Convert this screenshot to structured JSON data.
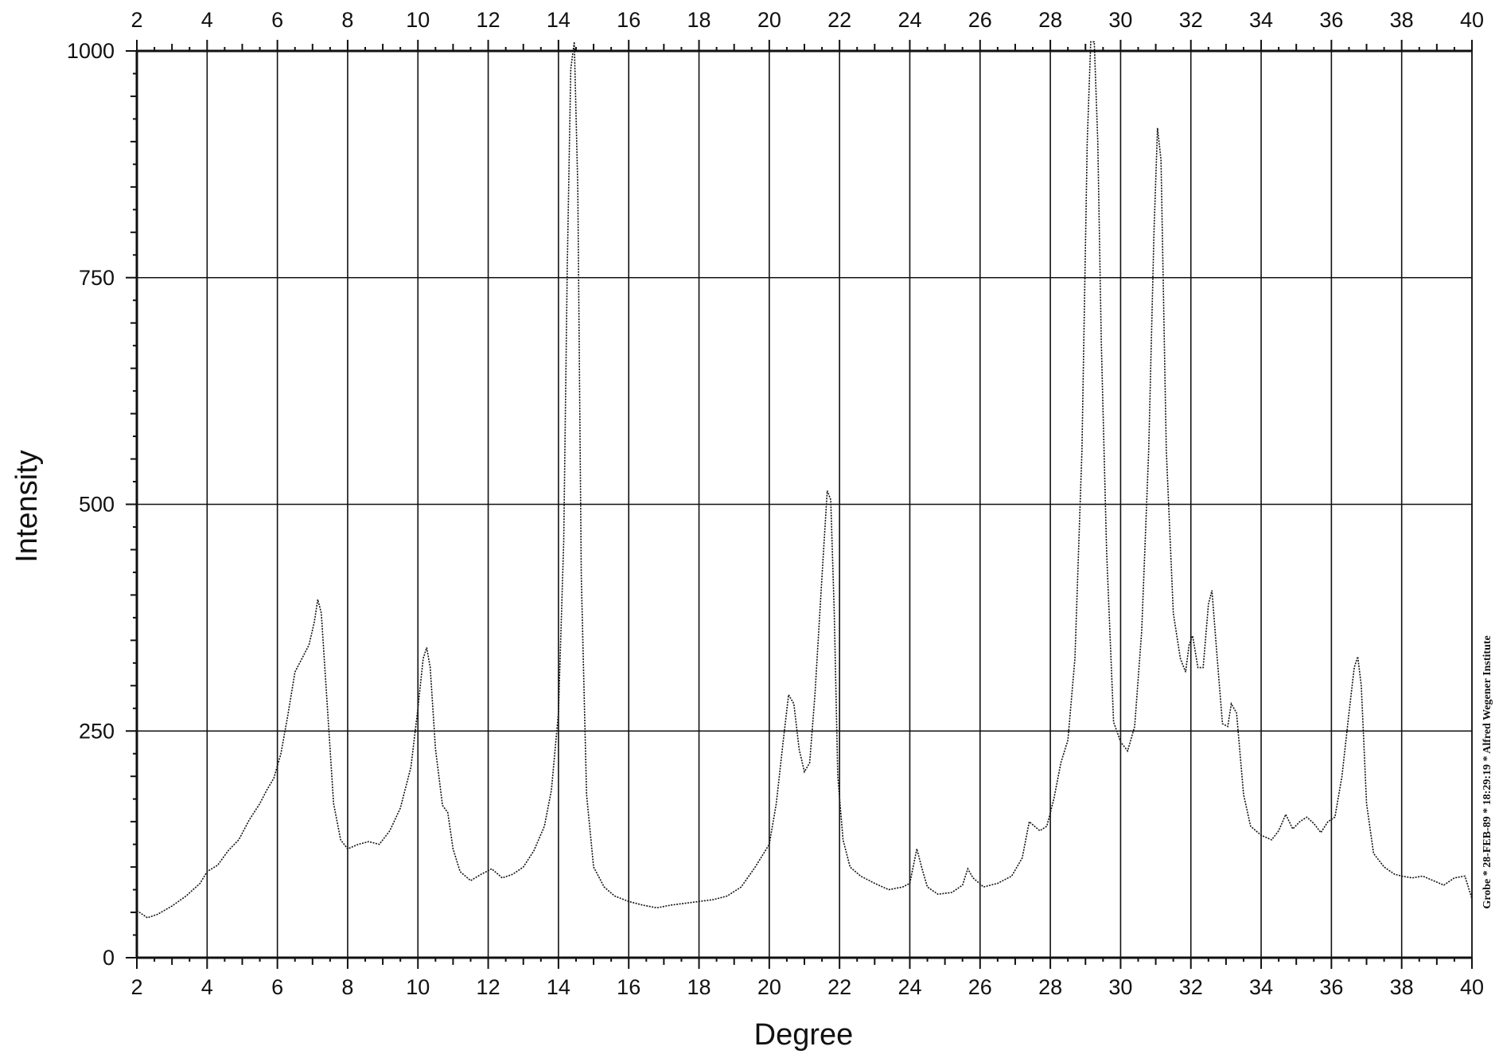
{
  "chart_data": {
    "type": "line",
    "xlabel": "Degree",
    "ylabel": "Intensity",
    "xlim": [
      2,
      40
    ],
    "ylim": [
      0,
      1000
    ],
    "x_ticks": [
      2,
      4,
      6,
      8,
      10,
      12,
      14,
      16,
      18,
      20,
      22,
      24,
      26,
      28,
      30,
      32,
      34,
      36,
      38,
      40
    ],
    "x_tick_labels": [
      "2",
      "4",
      "6",
      "8",
      "10",
      "12",
      "14",
      "16",
      "18",
      "20",
      "22",
      "24",
      "26",
      "28",
      "30",
      "32",
      "34",
      "36",
      "38",
      "40"
    ],
    "y_ticks": [
      0,
      250,
      500,
      750,
      1000
    ],
    "y_tick_labels": [
      "0",
      "250",
      "500",
      "750",
      "1000"
    ],
    "grid": true,
    "top_axis_labels": true,
    "line_style": "dotted",
    "line_color": "#111111",
    "annotation": "Grobe * 28-FEB-89 * 18:29:19 * Alfred Wegener Institute",
    "series": [
      {
        "x": [
          2.0,
          2.3,
          2.6,
          3.0,
          3.4,
          3.8,
          4.0,
          4.3,
          4.6,
          4.9,
          5.2,
          5.5,
          5.7,
          5.9,
          6.1,
          6.3,
          6.5,
          6.7,
          6.9,
          7.05,
          7.15,
          7.25,
          7.4,
          7.6,
          7.8,
          8.0,
          8.3,
          8.6,
          8.9,
          9.2,
          9.5,
          9.8,
          10.0,
          10.15,
          10.25,
          10.35,
          10.5,
          10.7,
          10.85,
          11.0,
          11.2,
          11.5,
          11.8,
          12.1,
          12.4,
          12.7,
          13.0,
          13.3,
          13.6,
          13.8,
          14.0,
          14.15,
          14.25,
          14.35,
          14.45,
          14.55,
          14.65,
          14.8,
          15.0,
          15.3,
          15.6,
          16.0,
          16.4,
          16.8,
          17.2,
          17.6,
          18.0,
          18.4,
          18.8,
          19.2,
          19.6,
          20.0,
          20.2,
          20.4,
          20.55,
          20.7,
          20.85,
          21.0,
          21.15,
          21.3,
          21.5,
          21.65,
          21.75,
          21.85,
          21.95,
          22.1,
          22.3,
          22.6,
          23.0,
          23.4,
          23.8,
          24.0,
          24.2,
          24.35,
          24.5,
          24.8,
          25.2,
          25.5,
          25.65,
          25.8,
          26.1,
          26.5,
          26.9,
          27.2,
          27.4,
          27.55,
          27.7,
          27.9,
          28.1,
          28.3,
          28.5,
          28.7,
          28.9,
          29.05,
          29.15,
          29.25,
          29.35,
          29.45,
          29.6,
          29.8,
          30.0,
          30.2,
          30.4,
          30.6,
          30.8,
          30.95,
          31.05,
          31.15,
          31.3,
          31.5,
          31.7,
          31.85,
          31.95,
          32.05,
          32.2,
          32.35,
          32.5,
          32.6,
          32.75,
          32.9,
          33.05,
          33.15,
          33.3,
          33.5,
          33.7,
          34.0,
          34.3,
          34.5,
          34.7,
          34.9,
          35.1,
          35.3,
          35.5,
          35.7,
          35.9,
          36.1,
          36.3,
          36.5,
          36.65,
          36.75,
          36.85,
          37.0,
          37.2,
          37.5,
          37.8,
          38.0,
          38.3,
          38.6,
          38.9,
          39.2,
          39.5,
          39.8,
          40.0
        ],
        "y": [
          52,
          44,
          48,
          57,
          68,
          82,
          95,
          102,
          118,
          130,
          152,
          170,
          185,
          198,
          225,
          268,
          315,
          330,
          345,
          370,
          395,
          380,
          290,
          170,
          130,
          120,
          125,
          128,
          125,
          140,
          165,
          210,
          275,
          330,
          342,
          320,
          230,
          168,
          160,
          120,
          95,
          85,
          92,
          98,
          88,
          92,
          100,
          118,
          145,
          185,
          270,
          460,
          760,
          980,
          1010,
          850,
          420,
          180,
          100,
          78,
          68,
          62,
          58,
          55,
          58,
          60,
          62,
          64,
          68,
          78,
          100,
          125,
          170,
          240,
          290,
          280,
          230,
          205,
          215,
          290,
          420,
          515,
          505,
          380,
          200,
          130,
          100,
          90,
          82,
          75,
          78,
          82,
          120,
          98,
          78,
          70,
          72,
          80,
          98,
          88,
          78,
          82,
          90,
          110,
          150,
          145,
          140,
          145,
          175,
          215,
          240,
          330,
          560,
          900,
          1010,
          1010,
          900,
          680,
          450,
          260,
          238,
          228,
          255,
          360,
          560,
          800,
          915,
          880,
          560,
          380,
          330,
          315,
          345,
          355,
          320,
          320,
          390,
          405,
          330,
          258,
          255,
          280,
          270,
          180,
          145,
          135,
          130,
          140,
          158,
          142,
          150,
          155,
          148,
          138,
          150,
          155,
          200,
          270,
          320,
          332,
          300,
          170,
          115,
          100,
          92,
          90,
          88,
          90,
          85,
          80,
          88,
          90,
          65
        ]
      }
    ]
  }
}
